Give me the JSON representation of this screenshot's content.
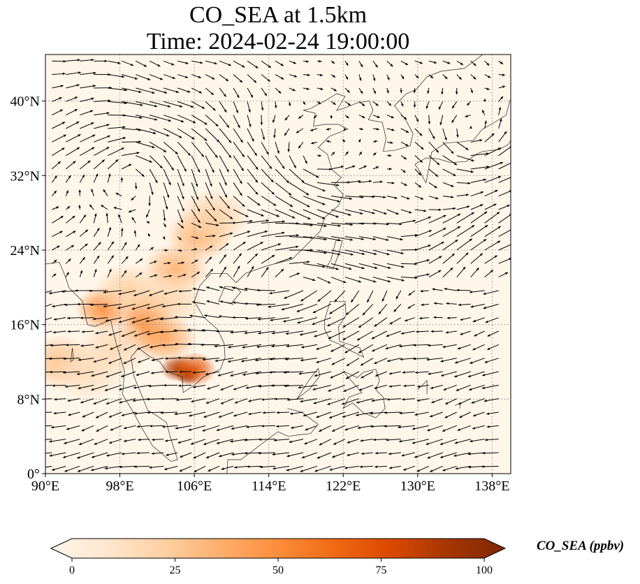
{
  "title": {
    "line1": "CO_SEA at 1.5km",
    "line2": "Time: 2024-02-24 19:00:00"
  },
  "map": {
    "extent": {
      "lon": [
        90,
        140
      ],
      "lat": [
        0,
        45
      ]
    },
    "lat_ticks": [
      {
        "value": 40,
        "label": "40°N"
      },
      {
        "value": 32,
        "label": "32°N"
      },
      {
        "value": 24,
        "label": "24°N"
      },
      {
        "value": 16,
        "label": "16°N"
      },
      {
        "value": 8,
        "label": "8°N"
      },
      {
        "value": 0,
        "label": "0°"
      }
    ],
    "lon_ticks": [
      {
        "value": 90,
        "label": "90°E"
      },
      {
        "value": 98,
        "label": "98°E"
      },
      {
        "value": 106,
        "label": "106°E"
      },
      {
        "value": 114,
        "label": "114°E"
      },
      {
        "value": 122,
        "label": "122°E"
      },
      {
        "value": 130,
        "label": "130°E"
      },
      {
        "value": 138,
        "label": "138°E"
      }
    ],
    "gridlines": true,
    "background_color": "#fff6ea",
    "concentration_hotspots": [
      {
        "lon": 105.3,
        "lat": 10.6,
        "value": 100
      },
      {
        "lon": 104.2,
        "lat": 11.3,
        "value": 85
      },
      {
        "lon": 106.0,
        "lat": 11.2,
        "value": 70
      },
      {
        "lon": 101.0,
        "lat": 17.3,
        "value": 55
      },
      {
        "lon": 100.8,
        "lat": 15.5,
        "value": 45
      },
      {
        "lon": 102.8,
        "lat": 14.5,
        "value": 40
      },
      {
        "lon": 96.3,
        "lat": 17.7,
        "value": 50
      },
      {
        "lon": 104.0,
        "lat": 22.0,
        "value": 35
      },
      {
        "lon": 106.5,
        "lat": 25.5,
        "value": 35
      },
      {
        "lon": 108.0,
        "lat": 27.5,
        "value": 25
      },
      {
        "lon": 91.5,
        "lat": 12.0,
        "value": 30
      },
      {
        "lon": 99.0,
        "lat": 19.5,
        "value": 25
      },
      {
        "lon": 103.0,
        "lat": 18.5,
        "value": 22
      },
      {
        "lon": 97.5,
        "lat": 13.5,
        "value": 20
      },
      {
        "lon": 94.5,
        "lat": 11.0,
        "value": 18
      }
    ]
  },
  "colorbar": {
    "ticks": [
      "0",
      "25",
      "50",
      "75",
      "100"
    ],
    "label": "CO_SEA (ppbv)",
    "colors": [
      "#fff5eb",
      "#fee6ce",
      "#fdd0a2",
      "#fdae6b",
      "#fd8d3c",
      "#f16913",
      "#d94801",
      "#a63603",
      "#7f2704"
    ]
  }
}
